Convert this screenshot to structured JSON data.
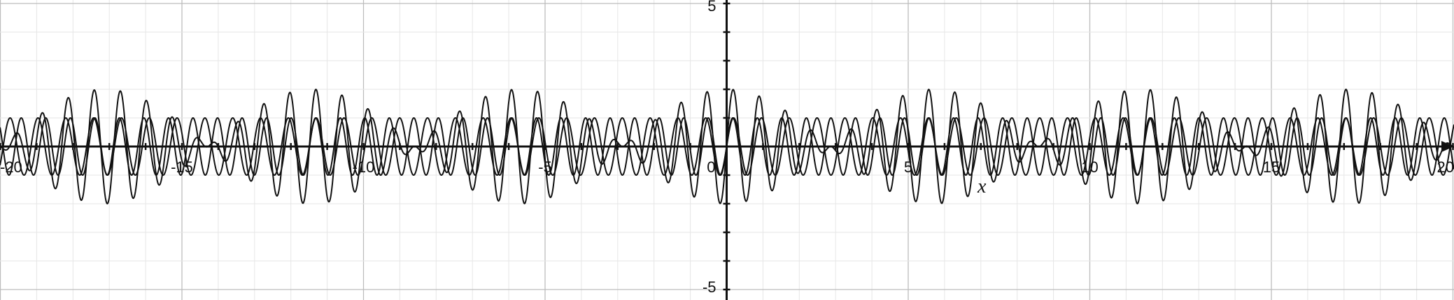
{
  "chart_data": {
    "type": "line",
    "title": "",
    "xlabel": "x",
    "ylabel": "",
    "xlim": [
      -20,
      20
    ],
    "ylim": [
      -5,
      5
    ],
    "grid": true,
    "x_ticks": [
      {
        "value": -20,
        "label": "-20"
      },
      {
        "value": -15,
        "label": "-15"
      },
      {
        "value": -10,
        "label": "-10"
      },
      {
        "value": -5,
        "label": "-5"
      },
      {
        "value": 0,
        "label": "0"
      },
      {
        "value": 5,
        "label": "5"
      },
      {
        "value": 10,
        "label": "10"
      },
      {
        "value": 15,
        "label": "15"
      },
      {
        "value": 20,
        "label": "20"
      }
    ],
    "y_ticks": [
      {
        "value": 5,
        "label": "5"
      },
      {
        "value": -5,
        "label": "-5"
      }
    ],
    "series": [
      {
        "formula": "sin(8.2x)",
        "x": [
          -20,
          -17.5,
          -15,
          -12.5,
          -10,
          -7.5,
          -5,
          -2.5,
          0,
          2.5,
          5,
          7.5,
          10,
          12.5,
          15,
          17.5,
          20
        ],
        "y": [
          0.58,
          0.46,
          0.86,
          0.11,
          -0.22,
          0.17,
          -0.13,
          -0.18,
          0,
          0.18,
          0.13,
          -0.17,
          0.22,
          -0.11,
          -0.86,
          -0.46,
          -0.58
        ]
      },
      {
        "formula": "sin(9.3x)",
        "x": [
          -20,
          -17.5,
          -15,
          -12.5,
          -10,
          -7.5,
          -5,
          -2.5,
          0,
          2.5,
          5,
          7.5,
          10,
          12.5,
          15,
          17.5,
          20
        ],
        "y": [
          0.87,
          -0.57,
          -0.95,
          -0.77,
          0.99,
          -0.98,
          -0.95,
          0.96,
          0,
          -0.96,
          0.95,
          0.98,
          -0.99,
          0.77,
          0.95,
          0.57,
          -0.87
        ]
      },
      {
        "formula": "sin(8.2x)+sin(9.3x)",
        "x": [
          -20,
          -17.5,
          -15,
          -12.5,
          -10,
          -7.5,
          -5,
          -2.5,
          0,
          2.5,
          5,
          7.5,
          10,
          12.5,
          15,
          17.5,
          20
        ],
        "y": [
          1.45,
          -0.11,
          -0.09,
          -0.66,
          0.77,
          -0.81,
          -1.08,
          0.78,
          0,
          -0.78,
          1.08,
          0.81,
          -0.77,
          0.66,
          0.09,
          0.11,
          -1.45
        ]
      }
    ]
  }
}
